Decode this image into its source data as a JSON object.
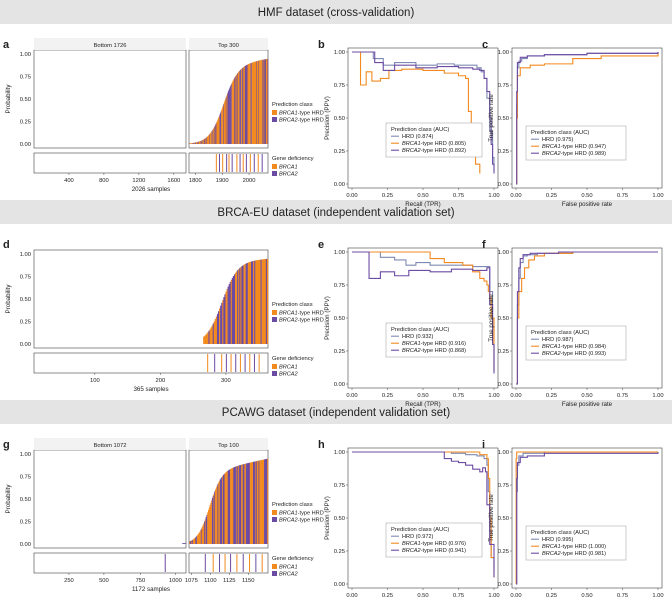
{
  "colors": {
    "brca1": "#f28a1f",
    "brca2": "#6c4ba3",
    "hrd": "#7f8ab4",
    "band": "#e4e4e4",
    "strip": "#c8c8c8",
    "axis": "#444444",
    "grid": "#f0f0f0"
  },
  "sections": [
    {
      "title": "HMF dataset (cross-validation)"
    },
    {
      "title": "BRCA-EU dataset (independent validation set)"
    },
    {
      "title": "PCAWG dataset (independent validation set)"
    }
  ],
  "chart_data": [
    {
      "panel": "a",
      "type": "bar",
      "dataset": "HMF",
      "ylabel": "Probability",
      "xlabel": "2026 samples",
      "facets": [
        "Bottom 1726",
        "Top 300"
      ],
      "ylim": [
        0,
        1
      ],
      "yticks": [
        "0.00",
        "0.25",
        "0.50",
        "0.75",
        "1.00"
      ],
      "xticks_left": [
        "400",
        "800",
        "1200",
        "1600"
      ],
      "xticks_right": [
        "1800",
        "1900",
        "2000"
      ],
      "n_samples": 2026,
      "n_bottom": 1726,
      "n_top": 300,
      "max_probability": 0.95,
      "legend_title": "Prediction class",
      "legend": [
        {
          "gene": "BRCA1",
          "rest": "-type HRD",
          "color": "#f28a1f"
        },
        {
          "gene": "BRCA2",
          "rest": "-type HRD",
          "color": "#6c4ba3"
        }
      ],
      "gene_legend_title": "Gene deficiency",
      "gene_legend": [
        {
          "gene": "BRCA1",
          "color": "#f28a1f"
        },
        {
          "gene": "BRCA2",
          "color": "#6c4ba3"
        }
      ]
    },
    {
      "panel": "b",
      "type": "line",
      "kind": "precision-recall",
      "xlabel": "Recall (TPR)",
      "ylabel": "Precision (PPV)",
      "xticks": [
        "0.00",
        "0.25",
        "0.50",
        "0.75",
        "1.00"
      ],
      "yticks": [
        "0.00",
        "0.25",
        "0.50",
        "0.75",
        "1.00"
      ],
      "legend_title": "Prediction class (AUC)",
      "series": [
        {
          "name": "HRD",
          "name_rest": " (0.874)",
          "color": "#7f8ab4",
          "x": [
            0,
            0.08,
            0.15,
            0.22,
            0.3,
            0.45,
            0.6,
            0.72,
            0.82,
            0.88,
            0.91,
            0.93,
            0.95,
            0.97,
            0.99,
            1.0
          ],
          "y": [
            1.0,
            1.0,
            0.95,
            0.9,
            0.92,
            0.9,
            0.91,
            0.9,
            0.9,
            0.88,
            0.85,
            0.8,
            0.65,
            0.4,
            0.2,
            0.1
          ]
        },
        {
          "name": "BRCA1",
          "name_rest": "-type HRD (0.805)",
          "color": "#f28a1f",
          "x": [
            0,
            0.04,
            0.06,
            0.1,
            0.14,
            0.2,
            0.26,
            0.35,
            0.5,
            0.65,
            0.75,
            0.8,
            0.82,
            0.84,
            0.87,
            0.9
          ],
          "y": [
            1.0,
            1.0,
            0.75,
            0.85,
            0.78,
            0.8,
            0.86,
            0.87,
            0.86,
            0.84,
            0.82,
            0.8,
            0.55,
            0.3,
            0.15,
            0.08
          ]
        },
        {
          "name": "BRCA2",
          "name_rest": "-type HRD (0.892)",
          "color": "#6c4ba3",
          "x": [
            0,
            0.1,
            0.16,
            0.22,
            0.3,
            0.45,
            0.6,
            0.75,
            0.85,
            0.9,
            0.93,
            0.95,
            0.97,
            0.98,
            0.99,
            1.0
          ],
          "y": [
            1.0,
            1.0,
            0.92,
            0.86,
            0.9,
            0.88,
            0.89,
            0.88,
            0.87,
            0.86,
            0.8,
            0.7,
            0.5,
            0.3,
            0.15,
            0.08
          ]
        }
      ]
    },
    {
      "panel": "c",
      "type": "line",
      "kind": "roc",
      "xlabel": "False positive rate",
      "ylabel": "True positive rate",
      "xticks": [
        "0.00",
        "0.25",
        "0.50",
        "0.75",
        "1.00"
      ],
      "yticks": [
        "0.00",
        "0.25",
        "0.50",
        "0.75",
        "1.00"
      ],
      "legend_title": "Prediction class (AUC)",
      "series": [
        {
          "name": "HRD",
          "name_rest": " (0.975)",
          "color": "#7f8ab4",
          "x": [
            0,
            0.005,
            0.01,
            0.02,
            0.04,
            0.08,
            0.2,
            0.5,
            1.0
          ],
          "y": [
            0,
            0.6,
            0.88,
            0.93,
            0.95,
            0.97,
            0.98,
            0.99,
            1.0
          ]
        },
        {
          "name": "BRCA1",
          "name_rest": "-type HRD (0.947)",
          "color": "#f28a1f",
          "x": [
            0,
            0.005,
            0.01,
            0.03,
            0.1,
            0.2,
            0.4,
            0.6,
            1.0
          ],
          "y": [
            0,
            0.5,
            0.82,
            0.88,
            0.9,
            0.91,
            0.95,
            0.97,
            1.0
          ]
        },
        {
          "name": "BRCA2",
          "name_rest": "-type HRD (0.989)",
          "color": "#6c4ba3",
          "x": [
            0,
            0.005,
            0.01,
            0.03,
            0.08,
            0.2,
            0.5,
            1.0
          ],
          "y": [
            0,
            0.7,
            0.92,
            0.96,
            0.97,
            0.98,
            0.99,
            1.0
          ]
        }
      ]
    },
    {
      "panel": "d",
      "type": "bar",
      "dataset": "BRCA-EU",
      "ylabel": "Probability",
      "xlabel": "365 samples",
      "facets": [],
      "ylim": [
        0,
        1
      ],
      "yticks": [
        "0.00",
        "0.25",
        "0.50",
        "0.75",
        "1.00"
      ],
      "xticks_left": [
        "100",
        "200",
        "300"
      ],
      "n_samples": 365,
      "max_probability": 0.95,
      "legend_title": "Prediction class",
      "legend": [
        {
          "gene": "BRCA1",
          "rest": "-type HRD",
          "color": "#f28a1f"
        },
        {
          "gene": "BRCA2",
          "rest": "-type HRD",
          "color": "#6c4ba3"
        }
      ],
      "gene_legend_title": "Gene deficiency",
      "gene_legend": [
        {
          "gene": "BRCA1",
          "color": "#f28a1f"
        },
        {
          "gene": "BRCA2",
          "color": "#6c4ba3"
        }
      ]
    },
    {
      "panel": "e",
      "type": "line",
      "kind": "precision-recall",
      "xlabel": "Recall (TPR)",
      "ylabel": "Precision (PPV)",
      "xticks": [
        "0.00",
        "0.25",
        "0.50",
        "0.75",
        "1.00"
      ],
      "yticks": [
        "0.00",
        "0.25",
        "0.50",
        "0.75",
        "1.00"
      ],
      "legend_title": "Prediction class (AUC)",
      "series": [
        {
          "name": "HRD",
          "name_rest": " (0.932)",
          "color": "#7f8ab4",
          "x": [
            0,
            0.15,
            0.2,
            0.3,
            0.38,
            0.45,
            0.55,
            0.7,
            0.85,
            0.95,
            0.97,
            0.99,
            1.0
          ],
          "y": [
            1.0,
            1.0,
            0.96,
            0.94,
            0.9,
            0.92,
            0.9,
            0.9,
            0.89,
            0.89,
            0.7,
            0.3,
            0.1
          ]
        },
        {
          "name": "BRCA1",
          "name_rest": "-type HRD (0.916)",
          "color": "#f28a1f",
          "x": [
            0,
            0.3,
            0.5,
            0.55,
            0.65,
            0.78,
            0.85,
            0.9,
            0.93,
            0.95,
            0.96,
            0.97,
            0.98,
            1.0
          ],
          "y": [
            1.0,
            1.0,
            1.0,
            0.95,
            0.92,
            0.9,
            0.85,
            0.8,
            0.78,
            0.75,
            0.7,
            0.65,
            0.5,
            0.1
          ]
        },
        {
          "name": "BRCA2",
          "name_rest": "-type HRD (0.868)",
          "color": "#6c4ba3",
          "x": [
            0,
            0.08,
            0.12,
            0.2,
            0.3,
            0.4,
            0.55,
            0.7,
            0.85,
            0.95,
            0.97,
            0.99,
            1.0
          ],
          "y": [
            1.0,
            1.0,
            0.8,
            0.85,
            0.82,
            0.86,
            0.85,
            0.87,
            0.86,
            0.88,
            0.6,
            0.3,
            0.08
          ]
        }
      ]
    },
    {
      "panel": "f",
      "type": "line",
      "kind": "roc",
      "xlabel": "False positive rate",
      "ylabel": "True positive rate",
      "xticks": [
        "0.00",
        "0.25",
        "0.50",
        "0.75",
        "1.00"
      ],
      "yticks": [
        "0.00",
        "0.25",
        "0.50",
        "0.75",
        "1.00"
      ],
      "legend_title": "Prediction class (AUC)",
      "series": [
        {
          "name": "HRD",
          "name_rest": " (0.987)",
          "color": "#7f8ab4",
          "x": [
            0,
            0.01,
            0.02,
            0.03,
            0.05,
            0.08,
            0.15,
            0.4,
            1.0
          ],
          "y": [
            0,
            0.6,
            0.8,
            0.92,
            0.97,
            0.98,
            0.99,
            1.0,
            1.0
          ]
        },
        {
          "name": "BRCA1",
          "name_rest": "-type HRD (0.984)",
          "color": "#f28a1f",
          "x": [
            0,
            0.01,
            0.02,
            0.04,
            0.06,
            0.09,
            0.13,
            0.2,
            0.4,
            1.0
          ],
          "y": [
            0,
            0.5,
            0.7,
            0.8,
            0.88,
            0.94,
            0.97,
            0.99,
            1.0,
            1.0
          ]
        },
        {
          "name": "BRCA2",
          "name_rest": "-type HRD (0.993)",
          "color": "#6c4ba3",
          "x": [
            0,
            0.01,
            0.02,
            0.03,
            0.05,
            0.1,
            0.3,
            1.0
          ],
          "y": [
            0,
            0.7,
            0.88,
            0.95,
            0.98,
            0.99,
            1.0,
            1.0
          ]
        }
      ]
    },
    {
      "panel": "g",
      "type": "bar",
      "dataset": "PCAWG",
      "ylabel": "Probability",
      "xlabel": "1172 samples",
      "facets": [
        "Bottom 1072",
        "Top 100"
      ],
      "ylim": [
        0,
        1
      ],
      "yticks": [
        "0.00",
        "0.25",
        "0.50",
        "0.75",
        "1.00"
      ],
      "xticks_left": [
        "250",
        "500",
        "750",
        "1000"
      ],
      "xticks_right": [
        "1075",
        "1100",
        "1125",
        "1150"
      ],
      "n_samples": 1172,
      "n_bottom": 1072,
      "n_top": 100,
      "max_probability": 0.95,
      "legend_title": "Prediction class",
      "legend": [
        {
          "gene": "BRCA1",
          "rest": "-type HRD",
          "color": "#f28a1f"
        },
        {
          "gene": "BRCA2",
          "rest": "-type HRD",
          "color": "#6c4ba3"
        }
      ],
      "gene_legend_title": "Gene deficiency",
      "gene_legend": [
        {
          "gene": "BRCA1",
          "color": "#f28a1f"
        },
        {
          "gene": "BRCA2",
          "color": "#6c4ba3"
        }
      ]
    },
    {
      "panel": "h",
      "type": "line",
      "kind": "precision-recall",
      "xlabel": "Recall (TPR)",
      "ylabel": "Precision (PPV)",
      "xticks": [
        "0.00",
        "0.25",
        "0.50",
        "0.75",
        "1.00"
      ],
      "yticks": [
        "0.00",
        "0.25",
        "0.50",
        "0.75",
        "1.00"
      ],
      "legend_title": "Prediction class (AUC)",
      "series": [
        {
          "name": "HRD",
          "name_rest": " (0.972)",
          "color": "#7f8ab4",
          "x": [
            0,
            0.6,
            0.7,
            0.8,
            0.88,
            0.93,
            0.95,
            0.96,
            0.97,
            0.98,
            1.0
          ],
          "y": [
            1.0,
            1.0,
            0.99,
            0.98,
            0.97,
            0.95,
            0.9,
            0.7,
            0.4,
            0.2,
            0.1
          ]
        },
        {
          "name": "BRCA1",
          "name_rest": "-type HRD (0.976)",
          "color": "#f28a1f",
          "x": [
            0,
            0.85,
            0.9,
            0.95,
            0.96,
            0.97,
            0.98,
            1.0
          ],
          "y": [
            1.0,
            1.0,
            0.98,
            0.95,
            0.8,
            0.5,
            0.2,
            0.05
          ]
        },
        {
          "name": "BRCA2",
          "name_rest": "-type HRD (0.941)",
          "color": "#6c4ba3",
          "x": [
            0,
            0.6,
            0.65,
            0.7,
            0.75,
            0.8,
            0.85,
            0.9,
            0.92,
            0.94,
            0.95,
            0.97,
            1.0
          ],
          "y": [
            1.0,
            1.0,
            0.95,
            0.93,
            0.92,
            0.9,
            0.87,
            0.85,
            0.88,
            0.85,
            0.6,
            0.3,
            0.05
          ]
        }
      ]
    },
    {
      "panel": "i",
      "type": "line",
      "kind": "roc",
      "xlabel": "False positive rate",
      "ylabel": "True positive rate",
      "xticks": [
        "0.00",
        "0.25",
        "0.50",
        "0.75",
        "1.00"
      ],
      "yticks": [
        "0.00",
        "0.25",
        "0.50",
        "0.75",
        "1.00"
      ],
      "legend_title": "Prediction class (AUC)",
      "series": [
        {
          "name": "HRD",
          "name_rest": " (0.995)",
          "color": "#7f8ab4",
          "x": [
            0,
            0.005,
            0.01,
            0.02,
            0.05,
            0.2,
            1.0
          ],
          "y": [
            0,
            0.7,
            0.9,
            0.97,
            0.99,
            1.0,
            1.0
          ]
        },
        {
          "name": "BRCA1",
          "name_rest": "-type HRD (1.000)",
          "color": "#f28a1f",
          "x": [
            0,
            0.001,
            0.005,
            1.0
          ],
          "y": [
            0,
            0.95,
            1.0,
            1.0
          ]
        },
        {
          "name": "BRCA2",
          "name_rest": "-type HRD (0.981)",
          "color": "#6c4ba3",
          "x": [
            0,
            0.005,
            0.01,
            0.03,
            0.08,
            0.2,
            1.0
          ],
          "y": [
            0,
            0.8,
            0.92,
            0.96,
            0.97,
            0.99,
            1.0
          ]
        }
      ]
    }
  ]
}
